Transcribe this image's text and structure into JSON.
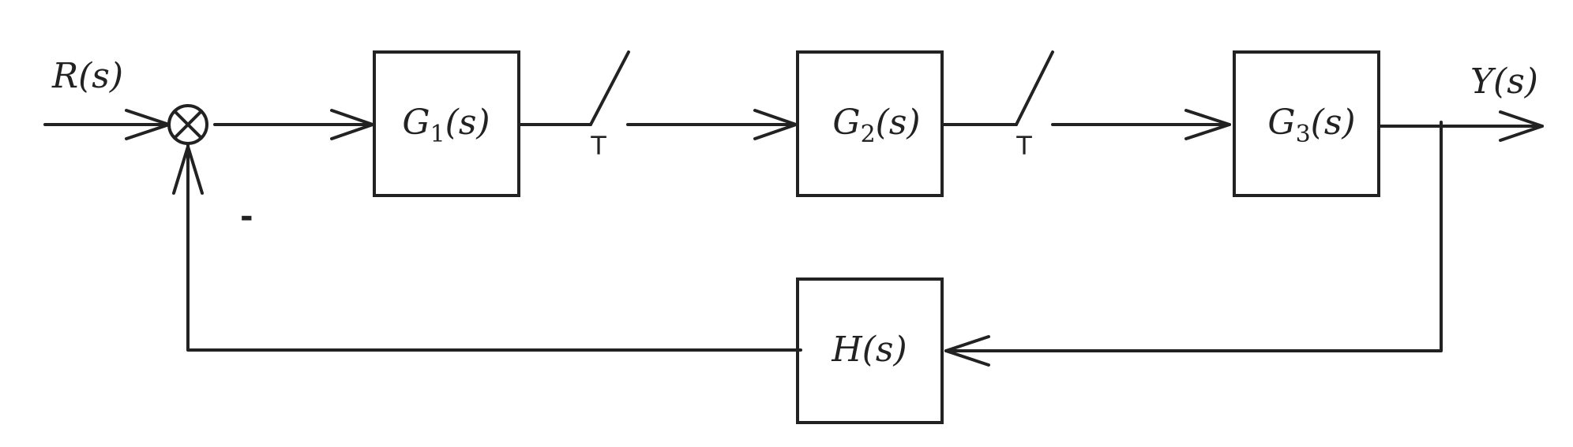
{
  "diagram": {
    "input_label": "R(s)",
    "output_label": "Y(s)",
    "minus_sign": "-",
    "blocks": {
      "g1": {
        "name": "G",
        "sub": "1",
        "arg": "(s)"
      },
      "g2": {
        "name": "G",
        "sub": "2",
        "arg": "(s)"
      },
      "g3": {
        "name": "G",
        "sub": "3",
        "arg": "(s)"
      },
      "h": {
        "name": "H",
        "arg": "(s)"
      }
    },
    "samplers": [
      {
        "label": "T"
      },
      {
        "label": "T"
      }
    ],
    "colors": {
      "stroke": "#222222",
      "background": "#ffffff"
    }
  }
}
